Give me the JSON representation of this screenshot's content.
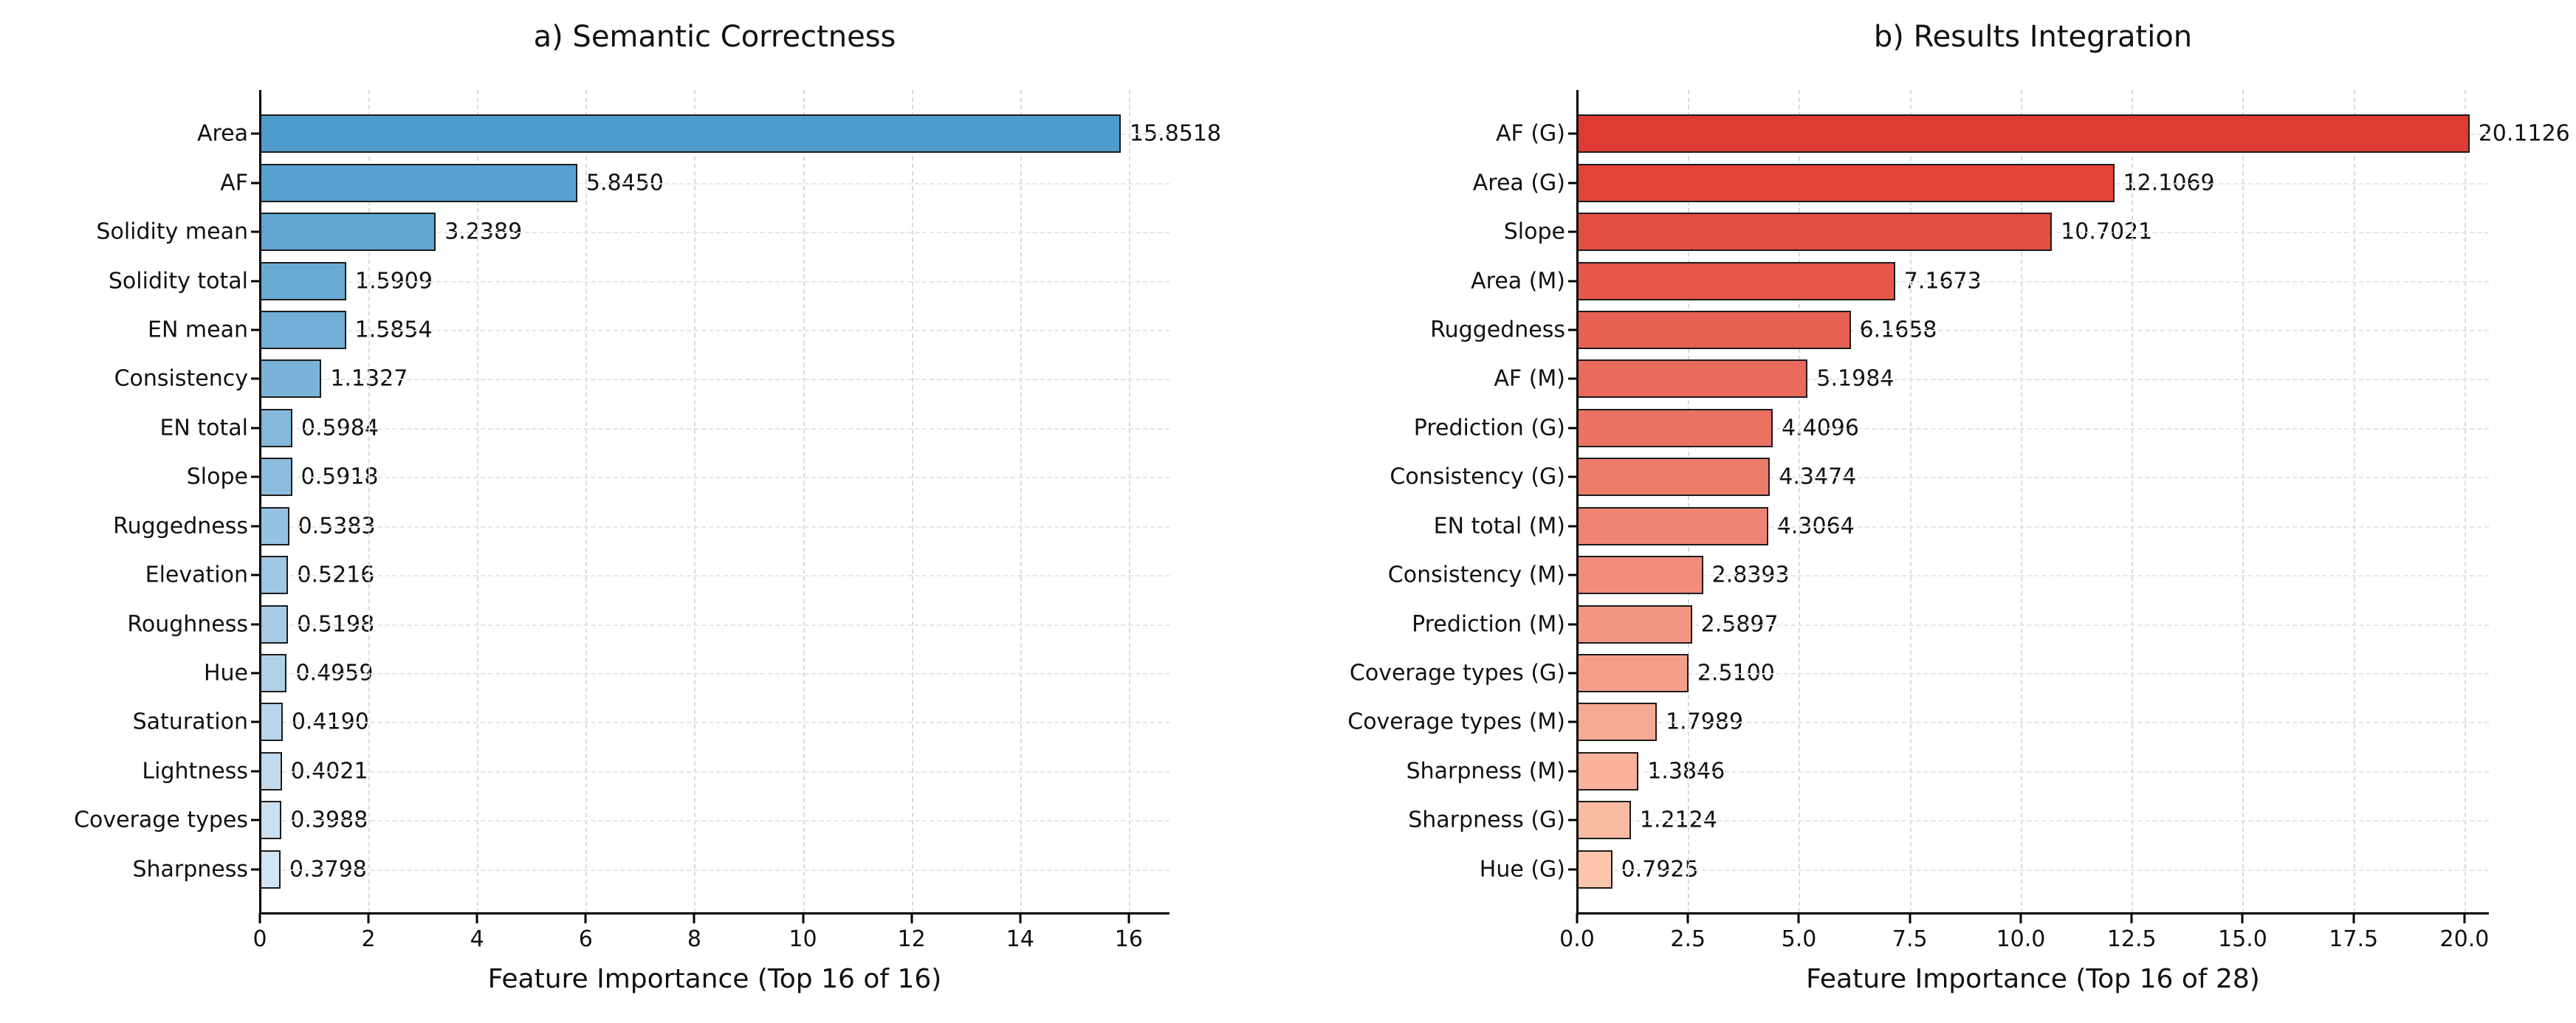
{
  "figure": {
    "background": "#ffffff"
  },
  "chart_data": [
    {
      "type": "bar",
      "orientation": "horizontal",
      "title": "a) Semantic Correctness",
      "xlabel": "Feature Importance (Top 16 of 16)",
      "ylabel": "",
      "categories": [
        "Area",
        "AF",
        "Solidity mean",
        "Solidity total",
        "EN mean",
        "Consistency",
        "EN total",
        "Slope",
        "Ruggedness",
        "Elevation",
        "Roughness",
        "Hue",
        "Saturation",
        "Lightness",
        "Coverage types",
        "Sharpness"
      ],
      "values": [
        15.8518,
        5.845,
        3.2389,
        1.5909,
        1.5854,
        1.1327,
        0.5984,
        0.5918,
        0.5383,
        0.5216,
        0.5198,
        0.4959,
        0.419,
        0.4021,
        0.3988,
        0.3798
      ],
      "value_labels": [
        "15.8518",
        "5.8450",
        "3.2389",
        "1.5909",
        "1.5854",
        "1.1327",
        "0.5984",
        "0.5918",
        "0.5383",
        "0.5216",
        "0.5198",
        "0.4959",
        "0.4190",
        "0.4021",
        "0.3988",
        "0.3798"
      ],
      "xlim": [
        0,
        16.75
      ],
      "xticks": [
        0,
        2,
        4,
        6,
        8,
        10,
        12,
        14,
        16
      ],
      "xtick_labels": [
        "0",
        "2",
        "4",
        "6",
        "8",
        "10",
        "12",
        "14",
        "16"
      ],
      "grid": {
        "vertical": true,
        "horizontal": true,
        "linestyle": "dashed",
        "color": "#dadada"
      },
      "legend": "none",
      "bar_edge_color": "#1c1c1c",
      "bar_colors": [
        "#4f9bcb",
        "#58a0ce",
        "#61a5d0",
        "#69aad3",
        "#72aed6",
        "#7bb3d8",
        "#84b8db",
        "#8dbdde",
        "#95c2e0",
        "#9ec7e3",
        "#a7cbe6",
        "#b0d0e8",
        "#b9d5eb",
        "#c1daee",
        "#cadff0",
        "#d3e4f3"
      ]
    },
    {
      "type": "bar",
      "orientation": "horizontal",
      "title": "b) Results Integration",
      "xlabel": "Feature Importance (Top 16 of 28)",
      "ylabel": "",
      "categories": [
        "AF (G)",
        "Area (G)",
        "Slope",
        "Area (M)",
        "Ruggedness",
        "AF (M)",
        "Prediction (G)",
        "Consistency (G)",
        "EN total (M)",
        "Consistency (M)",
        "Prediction (M)",
        "Coverage types (G)",
        "Coverage types (M)",
        "Sharpness (M)",
        "Sharpness (G)",
        "Hue (G)"
      ],
      "values": [
        20.1126,
        12.1069,
        10.7021,
        7.1673,
        6.1658,
        5.1984,
        4.4096,
        4.3474,
        4.3064,
        2.8393,
        2.5897,
        2.51,
        1.7989,
        1.3846,
        1.2124,
        0.7925
      ],
      "value_labels": [
        "20.1126",
        "12.1069",
        "10.7021",
        "7.1673",
        "6.1658",
        "5.1984",
        "4.4096",
        "4.3474",
        "4.3064",
        "2.8393",
        "2.5897",
        "2.5100",
        "1.7989",
        "1.3846",
        "1.2124",
        "0.7925"
      ],
      "xlim": [
        0,
        20.55
      ],
      "xticks": [
        0,
        2.5,
        5,
        7.5,
        10,
        12.5,
        15,
        17.5,
        20
      ],
      "xtick_labels": [
        "0.0",
        "2.5",
        "5.0",
        "7.5",
        "10.0",
        "12.5",
        "15.0",
        "17.5",
        "20.0"
      ],
      "grid": {
        "vertical": true,
        "horizontal": true,
        "linestyle": "dashed",
        "color": "#dadada"
      },
      "legend": "none",
      "bar_edge_color": "#1c1c1c",
      "bar_colors": [
        "#e03b32",
        "#e2443a",
        "#e44d42",
        "#e6564a",
        "#e76052",
        "#e9695a",
        "#eb7262",
        "#ed7b6a",
        "#ef8473",
        "#f18d7b",
        "#f39683",
        "#f59f8b",
        "#f6a993",
        "#f8b29b",
        "#fabba3",
        "#fcc4ab"
      ]
    }
  ]
}
